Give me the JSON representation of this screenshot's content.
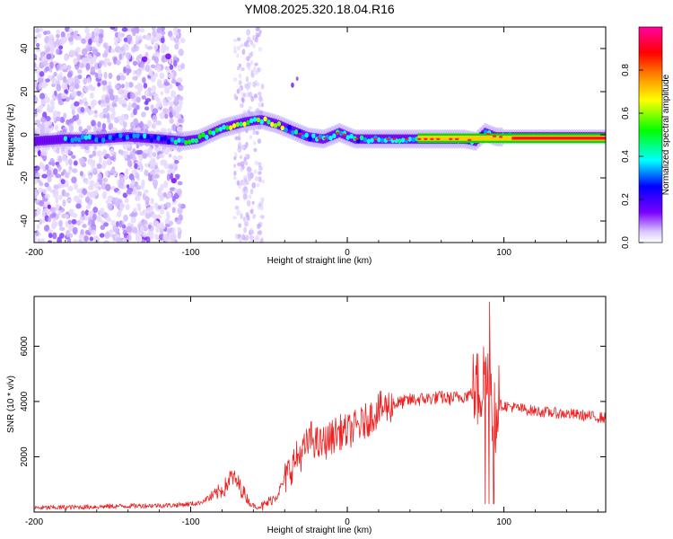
{
  "figure_title": "YM08.2025.320.18.04.R16",
  "chart_data": [
    {
      "type": "heatmap",
      "title": "YM08.2025.320.18.04.R16",
      "xlabel": "Height of straight line (km)",
      "ylabel": "Frequency (Hz)",
      "xlim": [
        -200,
        165
      ],
      "ylim": [
        -50,
        50
      ],
      "x_ticks": [
        -200,
        -100,
        0,
        100
      ],
      "y_ticks": [
        -40,
        -20,
        0,
        20,
        40
      ],
      "x_tick_labels": [
        "-200",
        "-100",
        "0",
        "100"
      ],
      "y_tick_labels": [
        "-40",
        "-20",
        "0",
        "20",
        "40"
      ],
      "colorbar": {
        "label": "Normalized spectral amplitude",
        "range": [
          0,
          1
        ],
        "ticks": [
          0.0,
          0.2,
          0.4,
          0.6,
          0.8
        ],
        "tick_labels": [
          "0.0",
          "0.2",
          "0.4",
          "0.6",
          "0.8"
        ],
        "colors": [
          "#ffffff",
          "#7b00ff",
          "#0000ff",
          "#00ffff",
          "#00ff00",
          "#ffff00",
          "#ff8000",
          "#ff0000",
          "#ff00a0"
        ]
      },
      "ridge_track": {
        "x": [
          -200,
          -180,
          -160,
          -140,
          -120,
          -105,
          -95,
          -80,
          -65,
          -55,
          -45,
          -35,
          -25,
          -15,
          -5,
          5,
          20,
          40,
          60,
          75,
          82,
          88,
          95,
          105,
          130,
          165
        ],
        "freq": [
          -3,
          -2,
          -2,
          -1,
          -2,
          -3,
          -2,
          3,
          6,
          7,
          5,
          2,
          -1,
          -2,
          1,
          -2,
          -2,
          -2,
          -2,
          -2,
          -3,
          1,
          -1,
          -1,
          -1,
          -1
        ]
      }
    },
    {
      "type": "line",
      "title": "",
      "xlabel": "Height of straight line (km)",
      "ylabel": "SNR (10 * v/v)",
      "xlim": [
        -200,
        165
      ],
      "ylim": [
        0,
        7800
      ],
      "x_ticks": [
        -200,
        -100,
        0,
        100
      ],
      "y_ticks": [
        2000,
        4000,
        6000
      ],
      "x_tick_labels": [
        "-200",
        "-100",
        "0",
        "100"
      ],
      "y_tick_labels": [
        "2000",
        "4000",
        "6000"
      ],
      "series": [
        {
          "name": "SNR",
          "color": "#ee2222",
          "x": [
            -200,
            -170,
            -140,
            -110,
            -95,
            -85,
            -78,
            -74,
            -70,
            -66,
            -62,
            -58,
            -54,
            -45,
            -38,
            -33,
            -28,
            -23,
            -18,
            -12,
            -6,
            0,
            10,
            20,
            30,
            40,
            50,
            60,
            65,
            70,
            75,
            80,
            84,
            87,
            90,
            92,
            94,
            96,
            100,
            110,
            120,
            130,
            140,
            150,
            165
          ],
          "y": [
            150,
            180,
            220,
            250,
            320,
            600,
            900,
            1300,
            1050,
            700,
            300,
            180,
            200,
            600,
            1400,
            1900,
            2200,
            2700,
            2400,
            2600,
            2900,
            2900,
            3200,
            3700,
            3900,
            4050,
            4100,
            4150,
            4100,
            4150,
            4200,
            4300,
            4400,
            4800,
            5300,
            4400,
            3200,
            3900,
            3850,
            3750,
            3650,
            3600,
            3550,
            3500,
            3400
          ]
        }
      ]
    }
  ]
}
